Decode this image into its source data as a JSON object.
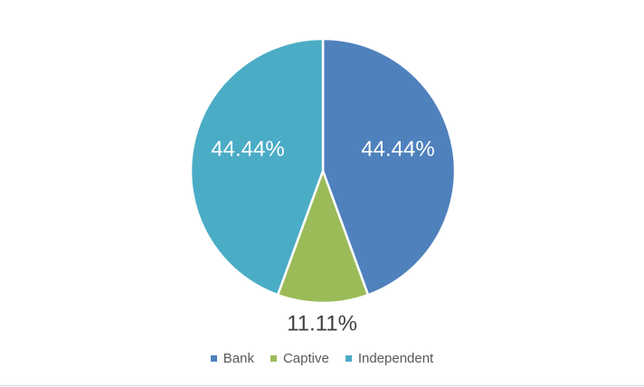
{
  "chart_data": {
    "type": "pie",
    "categories": [
      "Bank",
      "Captive",
      "Independent"
    ],
    "values": [
      44.44,
      11.11,
      44.44
    ],
    "data_labels": [
      "44.44%",
      "11.11%",
      "44.44%"
    ],
    "colors": [
      "#4f81bd",
      "#9bbb59",
      "#4bacc6"
    ],
    "start_angle_deg": 0,
    "direction": "clockwise",
    "legend_position": "bottom",
    "title": ""
  },
  "legend": {
    "items": [
      {
        "label": "Bank",
        "color": "#4f81bd"
      },
      {
        "label": "Captive",
        "color": "#9bbb59"
      },
      {
        "label": "Independent",
        "color": "#4bacc6"
      }
    ]
  }
}
